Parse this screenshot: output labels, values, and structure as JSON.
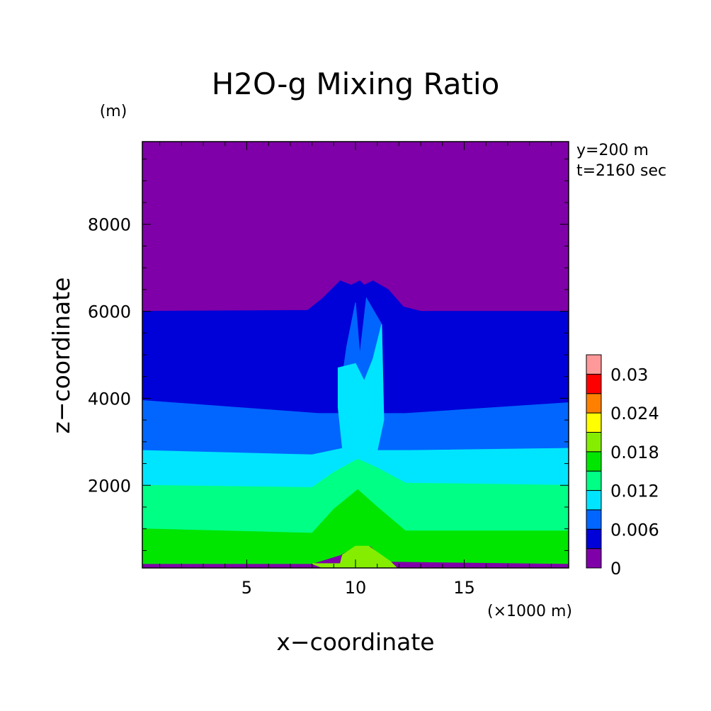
{
  "chart_data": {
    "type": "heatmap",
    "title": "H2O-g Mixing Ratio",
    "xlabel": "x−coordinate",
    "ylabel": "z−coordinate",
    "x_unit": "(×1000 m)",
    "y_unit": "(m)",
    "annotations": [
      "y=200 m",
      "t=2160 sec"
    ],
    "xlim": [
      0.2,
      19.8
    ],
    "ylim": [
      100,
      9900
    ],
    "x_ticks": [
      5,
      10,
      15
    ],
    "y_ticks": [
      2000,
      4000,
      6000,
      8000
    ],
    "colorbar": {
      "levels": [
        0,
        0.003,
        0.006,
        0.009,
        0.012,
        0.015,
        0.018,
        0.021,
        0.024,
        0.027,
        0.03,
        0.033
      ],
      "colors": [
        "#7f00a8",
        "#0000d8",
        "#0066ff",
        "#00e5ff",
        "#00ff85",
        "#00e600",
        "#85ee00",
        "#ffff00",
        "#ff8000",
        "#ff0000",
        "#ff9999"
      ],
      "tick_labels": [
        "0",
        "0.006",
        "0.012",
        "0.018",
        "0.024",
        "0.03"
      ],
      "tick_values": [
        0,
        0.006,
        0.012,
        0.018,
        0.024,
        0.03
      ]
    },
    "contour_bands": [
      {
        "range": [
          0,
          0.003
        ],
        "color": "#7f00a8",
        "boundary": [
          [
            0.2,
            9900
          ],
          [
            19.8,
            9900
          ],
          [
            19.8,
            6000
          ],
          [
            13,
            6000
          ],
          [
            12.2,
            6100
          ],
          [
            11.5,
            6500
          ],
          [
            10.8,
            6700
          ],
          [
            10.4,
            6600
          ],
          [
            10.2,
            6700
          ],
          [
            9.8,
            6600
          ],
          [
            9.3,
            6700
          ],
          [
            8.5,
            6300
          ],
          [
            7.8,
            6020
          ],
          [
            0.2,
            6000
          ]
        ]
      },
      {
        "range": [
          0.003,
          0.006
        ],
        "color": "#0000d8",
        "boundary": [
          [
            0.2,
            6000
          ],
          [
            7.8,
            6020
          ],
          [
            8.5,
            6300
          ],
          [
            9.3,
            6700
          ],
          [
            9.8,
            6600
          ],
          [
            10.2,
            6700
          ],
          [
            10.4,
            6600
          ],
          [
            10.8,
            6700
          ],
          [
            11.5,
            6500
          ],
          [
            12.2,
            6100
          ],
          [
            13,
            6000
          ],
          [
            19.8,
            6000
          ],
          [
            19.8,
            3900
          ],
          [
            12.3,
            3650
          ],
          [
            8.3,
            3650
          ],
          [
            0.2,
            3950
          ]
        ]
      },
      {
        "range": [
          0.006,
          0.009
        ],
        "color": "#0066ff",
        "boundary": [
          [
            0.2,
            3950
          ],
          [
            0.2,
            2800
          ],
          [
            8,
            2700
          ],
          [
            9.4,
            2850
          ],
          [
            9.2,
            3800
          ],
          [
            9.6,
            5200
          ],
          [
            9.8,
            5700
          ],
          [
            10,
            6200
          ],
          [
            10.2,
            5000
          ],
          [
            10.5,
            6300
          ],
          [
            11.2,
            5700
          ],
          [
            11.3,
            3500
          ],
          [
            11,
            2800
          ],
          [
            12.5,
            2800
          ],
          [
            19.8,
            2850
          ],
          [
            19.8,
            3900
          ],
          [
            12.3,
            3650
          ],
          [
            8.3,
            3650
          ]
        ]
      },
      {
        "range": [
          0.009,
          0.012
        ],
        "color": "#00e5ff",
        "boundary": [
          [
            0.2,
            2800
          ],
          [
            0.2,
            2000
          ],
          [
            8,
            1950
          ],
          [
            9,
            2300
          ],
          [
            10.1,
            2600
          ],
          [
            11,
            2400
          ],
          [
            12.3,
            2050
          ],
          [
            19.8,
            2000
          ],
          [
            19.8,
            2850
          ],
          [
            12.5,
            2800
          ],
          [
            11,
            2800
          ],
          [
            11.3,
            3500
          ],
          [
            11.2,
            5700
          ],
          [
            10.8,
            4900
          ],
          [
            10.4,
            4400
          ],
          [
            10,
            4800
          ],
          [
            9.2,
            4700
          ],
          [
            9.2,
            3800
          ],
          [
            9.4,
            2850
          ],
          [
            8,
            2700
          ]
        ]
      },
      {
        "range": [
          0.012,
          0.015
        ],
        "color": "#00ff85",
        "boundary": [
          [
            0.2,
            2000
          ],
          [
            0.2,
            1000
          ],
          [
            8,
            900
          ],
          [
            9,
            1450
          ],
          [
            10.1,
            1900
          ],
          [
            11,
            1500
          ],
          [
            12.3,
            950
          ],
          [
            19.8,
            950
          ],
          [
            19.8,
            2000
          ],
          [
            12.3,
            2050
          ],
          [
            11,
            2400
          ],
          [
            10.1,
            2600
          ],
          [
            9,
            2300
          ],
          [
            8,
            1950
          ]
        ]
      },
      {
        "range": [
          0.015,
          0.018
        ],
        "color": "#00e600",
        "boundary": [
          [
            0.2,
            1000
          ],
          [
            0.2,
            200
          ],
          [
            8,
            200
          ],
          [
            9.3,
            400
          ],
          [
            10,
            600
          ],
          [
            10.7,
            600
          ],
          [
            11.5,
            250
          ],
          [
            19.8,
            200
          ],
          [
            19.8,
            950
          ],
          [
            12.3,
            950
          ],
          [
            11,
            1500
          ],
          [
            10.1,
            1900
          ],
          [
            9,
            1450
          ],
          [
            8,
            900
          ]
        ]
      },
      {
        "range": [
          0.018,
          0.021
        ],
        "color": "#85ee00",
        "boundary": [
          [
            8,
            200
          ],
          [
            9.3,
            200
          ],
          [
            9.4,
            400
          ],
          [
            10,
            600
          ],
          [
            10.6,
            600
          ],
          [
            11.6,
            250
          ],
          [
            11.9,
            100
          ],
          [
            8.5,
            100
          ]
        ]
      }
    ]
  }
}
